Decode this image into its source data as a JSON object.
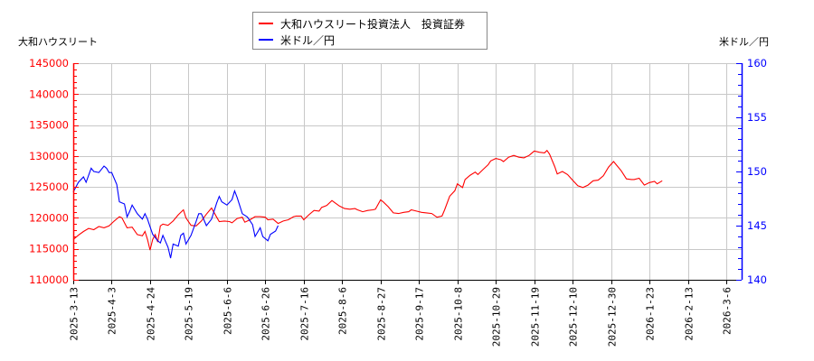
{
  "chart_data": {
    "type": "line",
    "title": "",
    "legend": {
      "position": "top-center",
      "entries": [
        {
          "name": "大和ハウスリート投資法人　投資証券",
          "color": "#ff0000"
        },
        {
          "name": "米ドル／円",
          "color": "#0000ff"
        }
      ]
    },
    "y_left": {
      "label": "大和ハウスリート",
      "range": [
        110000,
        145000
      ],
      "ticks": [
        "145000",
        "140000",
        "135000",
        "130000",
        "125000",
        "120000",
        "115000",
        "110000"
      ],
      "tick_values": [
        145000,
        140000,
        135000,
        130000,
        125000,
        120000,
        115000,
        110000
      ],
      "color": "#ff0000"
    },
    "y_right": {
      "label": "米ドル／円",
      "range": [
        140,
        160
      ],
      "ticks": [
        "160",
        "155",
        "150",
        "145",
        "140"
      ],
      "tick_values": [
        160,
        155,
        150,
        145,
        140
      ],
      "color": "#0000ff"
    },
    "x": {
      "label": "",
      "ticks": [
        "2025-3-13",
        "2025-4-3",
        "2025-4-24",
        "2025-5-19",
        "2025-6-6",
        "2025-6-26",
        "2025-7-16",
        "2025-8-6",
        "2025-8-27",
        "2025-9-17",
        "2025-10-8",
        "2025-10-29",
        "2025-11-19",
        "2025-12-10",
        "2025-12-30",
        "2026-1-23",
        "2026-2-13",
        "2026-3-6"
      ],
      "tick_index": [
        0,
        15,
        30,
        45,
        60,
        75,
        90,
        105,
        120,
        135,
        150,
        165,
        180,
        195,
        210,
        225,
        240,
        255
      ],
      "total_points": 262
    },
    "grid": true,
    "series": [
      {
        "name": "大和ハウスリート投資法人　投資証券",
        "axis": "left",
        "color": "#ff0000",
        "points": [
          [
            0,
            116500
          ],
          [
            2,
            117200
          ],
          [
            4,
            117800
          ],
          [
            6,
            118300
          ],
          [
            8,
            118100
          ],
          [
            10,
            118600
          ],
          [
            12,
            118400
          ],
          [
            14,
            118700
          ],
          [
            16,
            119500
          ],
          [
            18,
            120200
          ],
          [
            19,
            120000
          ],
          [
            21,
            118400
          ],
          [
            23,
            118500
          ],
          [
            25,
            117300
          ],
          [
            27,
            117100
          ],
          [
            28,
            117800
          ],
          [
            29,
            116500
          ],
          [
            30,
            114800
          ],
          [
            31,
            116500
          ],
          [
            32,
            117300
          ],
          [
            33,
            116100
          ],
          [
            34,
            118700
          ],
          [
            35,
            119000
          ],
          [
            37,
            118800
          ],
          [
            39,
            119500
          ],
          [
            41,
            120500
          ],
          [
            43,
            121300
          ],
          [
            44,
            120000
          ],
          [
            46,
            118800
          ],
          [
            48,
            118700
          ],
          [
            50,
            119500
          ],
          [
            52,
            120600
          ],
          [
            54,
            121600
          ],
          [
            56,
            120100
          ],
          [
            57,
            119400
          ],
          [
            59,
            119500
          ],
          [
            61,
            119400
          ],
          [
            62,
            119200
          ],
          [
            64,
            119900
          ],
          [
            66,
            120100
          ],
          [
            67,
            119300
          ],
          [
            69,
            119700
          ],
          [
            71,
            120200
          ],
          [
            73,
            120200
          ],
          [
            75,
            120100
          ],
          [
            76,
            119700
          ],
          [
            78,
            119800
          ],
          [
            80,
            119100
          ],
          [
            82,
            119500
          ],
          [
            84,
            119700
          ],
          [
            86,
            120200
          ],
          [
            87,
            120300
          ],
          [
            89,
            120300
          ],
          [
            90,
            119700
          ],
          [
            92,
            120500
          ],
          [
            94,
            121200
          ],
          [
            96,
            121100
          ],
          [
            97,
            121700
          ],
          [
            99,
            122000
          ],
          [
            101,
            122800
          ],
          [
            102,
            122500
          ],
          [
            104,
            121900
          ],
          [
            106,
            121500
          ],
          [
            108,
            121400
          ],
          [
            110,
            121500
          ],
          [
            111,
            121300
          ],
          [
            113,
            121000
          ],
          [
            115,
            121200
          ],
          [
            117,
            121300
          ],
          [
            118,
            121400
          ],
          [
            120,
            122900
          ],
          [
            121,
            122600
          ],
          [
            123,
            121800
          ],
          [
            125,
            120800
          ],
          [
            127,
            120700
          ],
          [
            129,
            120900
          ],
          [
            131,
            121000
          ],
          [
            132,
            121300
          ],
          [
            134,
            121100
          ],
          [
            136,
            120900
          ],
          [
            138,
            120800
          ],
          [
            140,
            120700
          ],
          [
            142,
            120100
          ],
          [
            144,
            120300
          ],
          [
            145,
            121300
          ],
          [
            147,
            123500
          ],
          [
            149,
            124400
          ],
          [
            150,
            125500
          ],
          [
            152,
            124900
          ],
          [
            153,
            126200
          ],
          [
            155,
            126900
          ],
          [
            157,
            127400
          ],
          [
            158,
            127000
          ],
          [
            160,
            127800
          ],
          [
            162,
            128600
          ],
          [
            163,
            129200
          ],
          [
            165,
            129600
          ],
          [
            167,
            129400
          ],
          [
            168,
            129100
          ],
          [
            170,
            129800
          ],
          [
            172,
            130100
          ],
          [
            174,
            129800
          ],
          [
            176,
            129700
          ],
          [
            178,
            130100
          ],
          [
            180,
            130800
          ],
          [
            182,
            130600
          ],
          [
            184,
            130500
          ],
          [
            185,
            130900
          ],
          [
            186,
            130300
          ],
          [
            188,
            128300
          ],
          [
            189,
            127100
          ],
          [
            191,
            127500
          ],
          [
            193,
            127000
          ],
          [
            195,
            126100
          ],
          [
            197,
            125200
          ],
          [
            199,
            124900
          ],
          [
            201,
            125300
          ],
          [
            203,
            126000
          ],
          [
            205,
            126100
          ],
          [
            207,
            126800
          ],
          [
            209,
            128200
          ],
          [
            211,
            129100
          ],
          [
            212,
            128600
          ],
          [
            214,
            127600
          ],
          [
            216,
            126300
          ],
          [
            218,
            126200
          ],
          [
            219,
            126200
          ],
          [
            221,
            126400
          ],
          [
            223,
            125300
          ],
          [
            225,
            125700
          ],
          [
            227,
            125900
          ],
          [
            228,
            125500
          ],
          [
            230,
            126000
          ]
        ]
      },
      {
        "name": "米ドル／円",
        "axis": "right",
        "color": "#0000ff",
        "points": [
          [
            0,
            148100
          ],
          [
            2,
            149000
          ],
          [
            4,
            149500
          ],
          [
            5,
            149000
          ],
          [
            7,
            150300
          ],
          [
            8,
            150000
          ],
          [
            10,
            149900
          ],
          [
            12,
            150500
          ],
          [
            13,
            150300
          ],
          [
            14,
            149900
          ],
          [
            15,
            149900
          ],
          [
            17,
            148800
          ],
          [
            18,
            147200
          ],
          [
            20,
            147000
          ],
          [
            21,
            145800
          ],
          [
            22,
            146300
          ],
          [
            23,
            146900
          ],
          [
            25,
            146100
          ],
          [
            27,
            145600
          ],
          [
            28,
            146100
          ],
          [
            29,
            145600
          ],
          [
            30,
            144900
          ],
          [
            31,
            144200
          ],
          [
            33,
            143600
          ],
          [
            34,
            143400
          ],
          [
            35,
            144100
          ],
          [
            37,
            143000
          ],
          [
            38,
            142000
          ],
          [
            39,
            143300
          ],
          [
            41,
            143100
          ],
          [
            42,
            144100
          ],
          [
            43,
            144300
          ],
          [
            44,
            143300
          ],
          [
            46,
            144100
          ],
          [
            48,
            145400
          ],
          [
            49,
            146100
          ],
          [
            50,
            146100
          ],
          [
            52,
            145000
          ],
          [
            54,
            145600
          ],
          [
            56,
            147100
          ],
          [
            57,
            147700
          ],
          [
            58,
            147200
          ],
          [
            60,
            146900
          ],
          [
            62,
            147400
          ],
          [
            63,
            148200
          ],
          [
            64,
            147600
          ],
          [
            66,
            146100
          ],
          [
            68,
            145800
          ],
          [
            70,
            145100
          ],
          [
            71,
            144000
          ],
          [
            73,
            144800
          ],
          [
            74,
            144000
          ],
          [
            76,
            143600
          ],
          [
            77,
            144200
          ],
          [
            79,
            144500
          ],
          [
            80,
            145000
          ]
        ]
      }
    ]
  }
}
